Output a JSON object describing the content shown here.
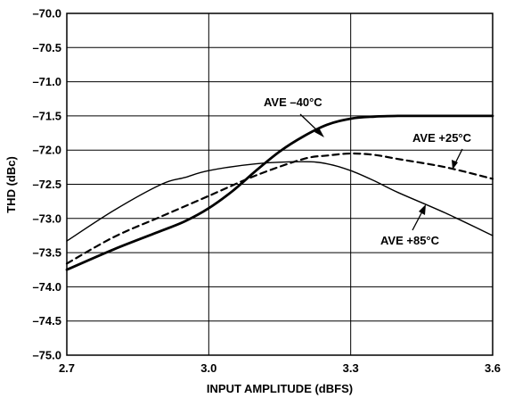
{
  "chart_data": {
    "type": "line",
    "xlabel": "INPUT AMPLITUDE (dBFS)",
    "ylabel": "THD (dBc)",
    "xlim": [
      2.7,
      3.6
    ],
    "ylim": [
      -75.0,
      -70.0
    ],
    "x_ticks": [
      "2.7",
      "3.0",
      "3.3",
      "3.6"
    ],
    "x_tick_values": [
      2.7,
      3.0,
      3.3,
      3.6
    ],
    "y_ticks": [
      "–70.0",
      "–70.5",
      "–71.0",
      "–71.5",
      "–72.0",
      "–72.5",
      "–73.0",
      "–73.5",
      "–74.0",
      "–74.5",
      "–75.0"
    ],
    "y_tick_values": [
      -70.0,
      -70.5,
      -71.0,
      -71.5,
      -72.0,
      -72.5,
      -73.0,
      -73.5,
      -74.0,
      -74.5,
      -75.0
    ],
    "grid": true,
    "series": [
      {
        "name": "AVE –40°C",
        "style": "solid-thick",
        "x": [
          2.7,
          2.8,
          2.9,
          2.95,
          3.0,
          3.05,
          3.1,
          3.15,
          3.2,
          3.25,
          3.3,
          3.35,
          3.4,
          3.45,
          3.5,
          3.6
        ],
        "y": [
          -73.75,
          -73.45,
          -73.18,
          -73.04,
          -72.85,
          -72.6,
          -72.3,
          -72.02,
          -71.8,
          -71.63,
          -71.54,
          -71.51,
          -71.5,
          -71.5,
          -71.5,
          -71.5
        ]
      },
      {
        "name": "AVE +25°C",
        "style": "dashed",
        "x": [
          2.7,
          2.8,
          2.9,
          3.0,
          3.1,
          3.2,
          3.25,
          3.3,
          3.35,
          3.4,
          3.5,
          3.6
        ],
        "y": [
          -73.66,
          -73.27,
          -72.97,
          -72.67,
          -72.37,
          -72.13,
          -72.08,
          -72.05,
          -72.07,
          -72.13,
          -72.25,
          -72.42
        ]
      },
      {
        "name": "AVE +85°C",
        "style": "solid-thin",
        "x": [
          2.7,
          2.8,
          2.9,
          2.95,
          3.0,
          3.1,
          3.2,
          3.25,
          3.3,
          3.35,
          3.4,
          3.5,
          3.6
        ],
        "y": [
          -73.33,
          -72.88,
          -72.5,
          -72.4,
          -72.3,
          -72.2,
          -72.17,
          -72.2,
          -72.3,
          -72.45,
          -72.62,
          -72.92,
          -73.25
        ]
      }
    ],
    "annotations": [
      "AVE –40°C",
      "AVE +25°C",
      "AVE +85°C"
    ]
  }
}
